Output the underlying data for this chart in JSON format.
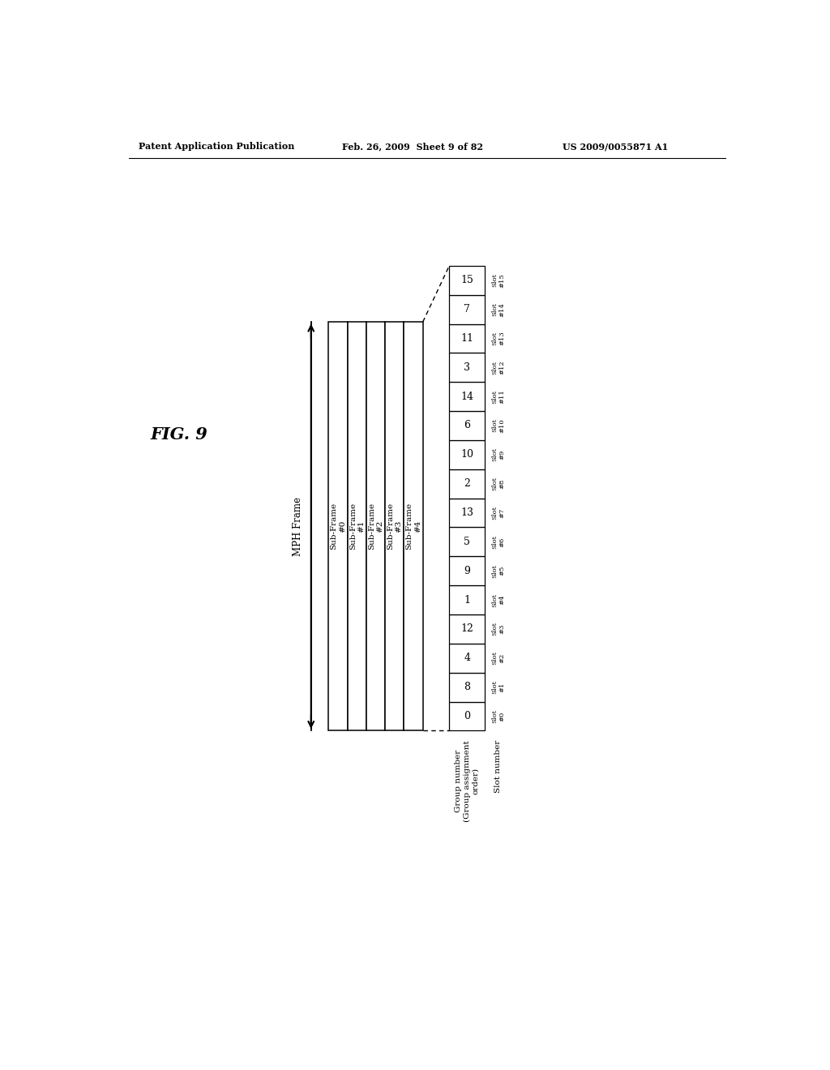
{
  "header_left": "Patent Application Publication",
  "header_mid": "Feb. 26, 2009  Sheet 9 of 82",
  "header_right": "US 2009/0055871 A1",
  "fig_label": "FIG. 9",
  "mph_frame_label": "MPH Frame",
  "subframes": [
    "Sub-Frame\n#0",
    "Sub-Frame\n#1",
    "Sub-Frame\n#2",
    "Sub-Frame\n#3",
    "Sub-Frame\n#4"
  ],
  "group_numbers": [
    0,
    8,
    4,
    12,
    1,
    9,
    5,
    13,
    2,
    10,
    6,
    14,
    3,
    11,
    7,
    15
  ],
  "slot_labels": [
    "Slot\n#0",
    "Slot\n#1",
    "Slot\n#2",
    "Slot\n#3",
    "Slot\n#4",
    "Slot\n#5",
    "Slot\n#6",
    "Slot\n#7",
    "Slot\n#8",
    "Slot\n#9",
    "Slot\n#10",
    "Slot\n#11",
    "Slot\n#12",
    "Slot\n#13",
    "Slot\n#14",
    "Slot\n#15"
  ],
  "group_label": "Group number\n(Group assignment\norder)",
  "slot_number_label": "Slot number",
  "bg_color": "#ffffff",
  "fg_color": "#000000"
}
